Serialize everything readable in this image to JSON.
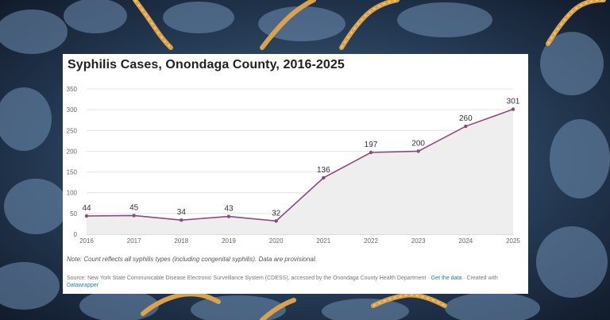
{
  "colors": {
    "line": "#8e4a7f",
    "area": "#eeeeee",
    "grid": "#e4e4e4",
    "axis_text": "#666666",
    "label_text": "#333333",
    "link": "#1d81a2"
  },
  "background": {
    "description_icon": "bacteria-microscopy-image"
  },
  "chart_data": {
    "type": "area",
    "title": "Syphilis Cases, Onondaga County, 2016-2025",
    "xlabel": "",
    "ylabel": "",
    "x": [
      "2016",
      "2017",
      "2018",
      "2019",
      "2020",
      "2021",
      "2022",
      "2023",
      "2024",
      "2025"
    ],
    "values": [
      44,
      45,
      34,
      43,
      32,
      136,
      197,
      200,
      260,
      301
    ],
    "data_labels": [
      "44",
      "45",
      "34",
      "43",
      "32",
      "136",
      "197",
      "200",
      "260",
      "301"
    ],
    "ylim": [
      0,
      350
    ],
    "yticks": [
      0,
      50,
      100,
      150,
      200,
      250,
      300,
      350
    ],
    "grid": true,
    "legend": "none"
  },
  "note": "Note: Count reflects all syphilis types (including congenital syphilis). Data are provisional.",
  "source": {
    "text": "Source: New York State Communicable Disease Electronic Surveillance System (CDESS), accessed by the Onondaga County Health Department ·",
    "get_data_link": "Get the data",
    "created_with": "· Created with",
    "datawrapper_link": "Datawrapper"
  }
}
